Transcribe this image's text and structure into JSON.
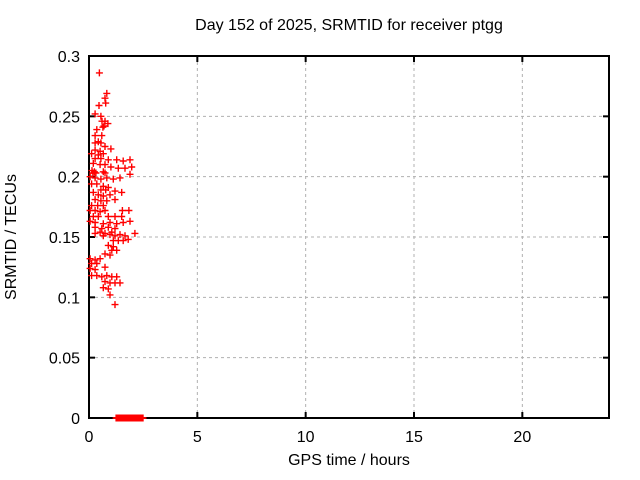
{
  "chart_data": {
    "type": "scatter",
    "title": "Day 152 of 2025, SRMTID for receiver ptgg",
    "xlabel": "GPS time / hours",
    "ylabel": "SRMTID / TECUs",
    "xlim": [
      0,
      24
    ],
    "ylim": [
      0,
      0.3
    ],
    "xticks": {
      "values": [
        0,
        5,
        10,
        15,
        20
      ],
      "labels": [
        "0",
        "5",
        "10",
        "15",
        "20"
      ]
    },
    "yticks": {
      "values": [
        0,
        0.05,
        0.1,
        0.15,
        0.2,
        0.25,
        0.3
      ],
      "labels": [
        "0",
        "0.05",
        "0.1",
        "0.15",
        "0.2",
        "0.25",
        "0.3"
      ]
    },
    "grid": true,
    "grid_style": "dashed",
    "legend": "none",
    "marker": {
      "shape": "plus",
      "color": "#ff0000",
      "size": 7
    },
    "colors": {
      "marker": "#ff0000",
      "grid": "#b0b0b0",
      "axis": "#000000",
      "background": "#ffffff"
    },
    "series": [
      {
        "name": "SRMTID",
        "points": [
          [
            0.48,
            0.286
          ],
          [
            0.82,
            0.269
          ],
          [
            0.74,
            0.265
          ],
          [
            0.77,
            0.261
          ],
          [
            0.46,
            0.259
          ],
          [
            0.28,
            0.252
          ],
          [
            0.55,
            0.25
          ],
          [
            0.6,
            0.246
          ],
          [
            0.74,
            0.246
          ],
          [
            0.87,
            0.244
          ],
          [
            0.69,
            0.242
          ],
          [
            0.64,
            0.241
          ],
          [
            0.36,
            0.239
          ],
          [
            0.28,
            0.234
          ],
          [
            0.59,
            0.234
          ],
          [
            0.43,
            0.229
          ],
          [
            0.28,
            0.228
          ],
          [
            0.55,
            0.228
          ],
          [
            0.74,
            0.225
          ],
          [
            1.01,
            0.223
          ],
          [
            0.28,
            0.222
          ],
          [
            0.51,
            0.221
          ],
          [
            0.12,
            0.219
          ],
          [
            0.66,
            0.219
          ],
          [
            0.43,
            0.218
          ],
          [
            0.28,
            0.215
          ],
          [
            0.55,
            0.215
          ],
          [
            0.89,
            0.214
          ],
          [
            1.28,
            0.214
          ],
          [
            1.89,
            0.214
          ],
          [
            1.58,
            0.213
          ],
          [
            0.2,
            0.211
          ],
          [
            0.51,
            0.21
          ],
          [
            0.74,
            0.21
          ],
          [
            1.01,
            0.208
          ],
          [
            1.97,
            0.208
          ],
          [
            1.35,
            0.207
          ],
          [
            1.66,
            0.207
          ],
          [
            0.14,
            0.205
          ],
          [
            0.25,
            0.204
          ],
          [
            0.66,
            0.204
          ],
          [
            0.18,
            0.203
          ],
          [
            0.32,
            0.203
          ],
          [
            0.74,
            0.203
          ],
          [
            1.89,
            0.202
          ],
          [
            0.05,
            0.2
          ],
          [
            0.28,
            0.199
          ],
          [
            0.82,
            0.199
          ],
          [
            1.43,
            0.199
          ],
          [
            0.55,
            0.198
          ],
          [
            1.12,
            0.198
          ],
          [
            0.12,
            0.194
          ],
          [
            0.36,
            0.194
          ],
          [
            0.66,
            0.192
          ],
          [
            0.89,
            0.191
          ],
          [
            0.55,
            0.189
          ],
          [
            0.77,
            0.189
          ],
          [
            1.2,
            0.188
          ],
          [
            0.2,
            0.187
          ],
          [
            1.51,
            0.187
          ],
          [
            0.43,
            0.185
          ],
          [
            0.97,
            0.185
          ],
          [
            0.66,
            0.184
          ],
          [
            0.28,
            0.181
          ],
          [
            1.2,
            0.181
          ],
          [
            0.55,
            0.18
          ],
          [
            0.82,
            0.18
          ],
          [
            0.12,
            0.176
          ],
          [
            0.4,
            0.176
          ],
          [
            0.66,
            0.176
          ],
          [
            0.05,
            0.172
          ],
          [
            0.74,
            0.172
          ],
          [
            1.54,
            0.172
          ],
          [
            1.84,
            0.172
          ],
          [
            0.28,
            0.172
          ],
          [
            0.51,
            0.171
          ],
          [
            0.2,
            0.167
          ],
          [
            0.43,
            0.167
          ],
          [
            0.89,
            0.167
          ],
          [
            1.2,
            0.167
          ],
          [
            1.51,
            0.167
          ],
          [
            0.05,
            0.163
          ],
          [
            1.89,
            0.163
          ],
          [
            0.28,
            0.162
          ],
          [
            0.97,
            0.162
          ],
          [
            1.58,
            0.162
          ],
          [
            0.66,
            0.161
          ],
          [
            1.28,
            0.161
          ],
          [
            0.28,
            0.158
          ],
          [
            0.89,
            0.158
          ],
          [
            0.59,
            0.157
          ],
          [
            1.2,
            0.157
          ],
          [
            0.51,
            0.154
          ],
          [
            1.05,
            0.154
          ],
          [
            0.74,
            0.153
          ],
          [
            0.28,
            0.153
          ],
          [
            2.12,
            0.153
          ],
          [
            0.97,
            0.152
          ],
          [
            1.43,
            0.152
          ],
          [
            0.66,
            0.151
          ],
          [
            1.2,
            0.151
          ],
          [
            1.66,
            0.151
          ],
          [
            1.12,
            0.147
          ],
          [
            1.35,
            0.147
          ],
          [
            1.58,
            0.147
          ],
          [
            1.81,
            0.148
          ],
          [
            0.89,
            0.143
          ],
          [
            1.12,
            0.142
          ],
          [
            1.05,
            0.139
          ],
          [
            1.28,
            0.139
          ],
          [
            0.74,
            0.136
          ],
          [
            0.97,
            0.135
          ],
          [
            0.05,
            0.132
          ],
          [
            0.51,
            0.132
          ],
          [
            0.28,
            0.131
          ],
          [
            0.12,
            0.128
          ],
          [
            0.36,
            0.128
          ],
          [
            0.74,
            0.125
          ],
          [
            0.05,
            0.124
          ],
          [
            0.28,
            0.123
          ],
          [
            0.12,
            0.118
          ],
          [
            0.36,
            0.118
          ],
          [
            0.82,
            0.118
          ],
          [
            0.59,
            0.117
          ],
          [
            1.05,
            0.117
          ],
          [
            1.28,
            0.117
          ],
          [
            0.74,
            0.113
          ],
          [
            0.97,
            0.112
          ],
          [
            1.2,
            0.112
          ],
          [
            1.43,
            0.112
          ],
          [
            0.66,
            0.108
          ],
          [
            0.89,
            0.107
          ],
          [
            0.97,
            0.102
          ],
          [
            1.2,
            0.094
          ],
          [
            1.25,
            0
          ],
          [
            1.29,
            0
          ],
          [
            1.33,
            0
          ],
          [
            1.37,
            0
          ],
          [
            1.41,
            0
          ],
          [
            1.45,
            0
          ],
          [
            1.49,
            0
          ],
          [
            1.53,
            0
          ],
          [
            1.57,
            0
          ],
          [
            1.61,
            0
          ],
          [
            1.65,
            0
          ],
          [
            1.69,
            0
          ],
          [
            1.73,
            0
          ],
          [
            1.77,
            0
          ],
          [
            1.81,
            0
          ],
          [
            1.85,
            0
          ],
          [
            1.89,
            0
          ],
          [
            1.93,
            0
          ],
          [
            1.97,
            0
          ],
          [
            2.01,
            0
          ],
          [
            2.05,
            0
          ],
          [
            2.09,
            0
          ],
          [
            2.13,
            0
          ],
          [
            2.17,
            0
          ],
          [
            2.21,
            0
          ],
          [
            2.25,
            0
          ],
          [
            2.29,
            0
          ],
          [
            2.33,
            0
          ],
          [
            2.37,
            0
          ],
          [
            2.41,
            0
          ],
          [
            2.45,
            0
          ],
          [
            2.49,
            0
          ]
        ]
      }
    ]
  }
}
